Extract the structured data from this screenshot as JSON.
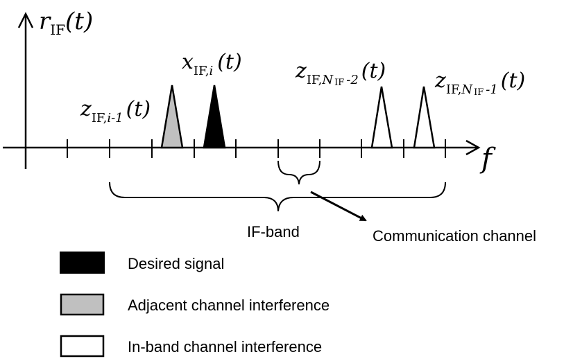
{
  "axes": {
    "y_label": {
      "main": "r",
      "sub": "IF",
      "arg": "(t)"
    },
    "x_label": "f"
  },
  "signals": {
    "adjacent": {
      "main": "z",
      "sub_roman": "IF,",
      "sub_italic": "i-1",
      "arg": "(t)"
    },
    "desired": {
      "main": "x",
      "sub_roman": "IF,",
      "sub_italic": "i",
      "arg": "(t)"
    },
    "inband_a": {
      "main": "z",
      "sub_roman": "IF,",
      "sub_italic": "N",
      "sub_roman2": "IF",
      "sub_tail": "-2",
      "arg": "(t)"
    },
    "inband_b": {
      "main": "z",
      "sub_roman": "IF,",
      "sub_italic": "N",
      "sub_roman2": "IF",
      "sub_tail": "-1",
      "arg": "(t)"
    }
  },
  "annotations": {
    "if_band": "IF-band",
    "comm_channel": "Communication channel"
  },
  "legend": [
    {
      "label": "Desired signal",
      "color": "#000000"
    },
    {
      "label": "Adjacent channel interference",
      "color": "#c0c0c0"
    },
    {
      "label": "In-band channel interference",
      "color": "#ffffff"
    }
  ]
}
